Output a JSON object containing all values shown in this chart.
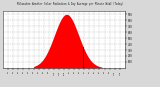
{
  "title": "Milwaukee Weather Solar Radiation & Day Average per Minute W/m2 (Today)",
  "bg_color": "#d8d8d8",
  "plot_bg_color": "#ffffff",
  "grid_color": "#aaaaaa",
  "red_fill_color": "#ff0000",
  "blue_line_color": "#0000ff",
  "peak_hour": 12.5,
  "peak_value": 900,
  "sigma": 2.4,
  "start_hour": 6.0,
  "end_hour": 19.5,
  "current_hour": 15.8,
  "ylim_max": 950,
  "xlim": [
    0,
    24
  ],
  "yticks": [
    100,
    200,
    300,
    400,
    500,
    600,
    700,
    800,
    900
  ],
  "xtick_hours": [
    1,
    2,
    3,
    4,
    5,
    6,
    7,
    8,
    9,
    10,
    11,
    12,
    13,
    14,
    15,
    16,
    17,
    18,
    19,
    20,
    21,
    22,
    23
  ]
}
